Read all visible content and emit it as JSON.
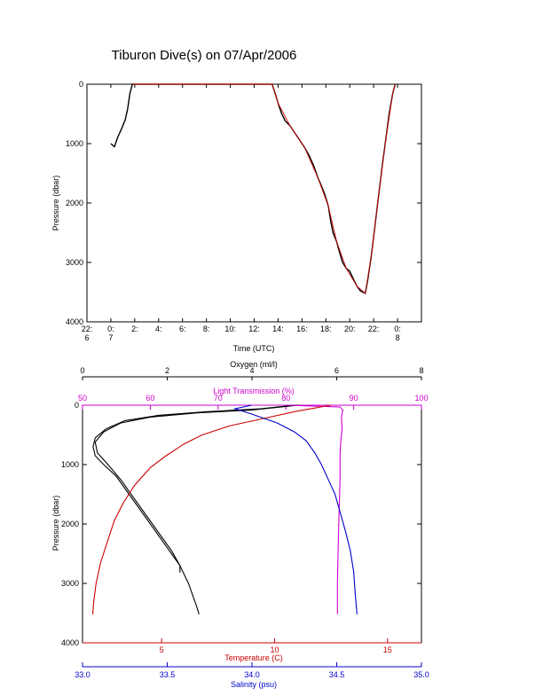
{
  "figure": {
    "title": "Tiburon Dive(s) on 07/Apr/2006"
  },
  "chart_data": [
    {
      "type": "line",
      "name": "dive-depth-vs-time",
      "xlabel": "Time (UTC)",
      "ylabel": "Pressure (dbar)",
      "xlim": [
        -2,
        26
      ],
      "ylim": [
        4000,
        0
      ],
      "y_ticks": [
        "0",
        "1000",
        "2000",
        "3000",
        "4000"
      ],
      "x_ticks": [
        {
          "x": -2,
          "label1": "22:",
          "label2": "6"
        },
        {
          "x": 0,
          "label1": "0:",
          "label2": "7"
        },
        {
          "x": 2,
          "label1": "2:",
          "label2": ""
        },
        {
          "x": 4,
          "label1": "4:",
          "label2": ""
        },
        {
          "x": 6,
          "label1": "6:",
          "label2": ""
        },
        {
          "x": 8,
          "label1": "8:",
          "label2": ""
        },
        {
          "x": 10,
          "label1": "10:",
          "label2": ""
        },
        {
          "x": 12,
          "label1": "12:",
          "label2": ""
        },
        {
          "x": 14,
          "label1": "14:",
          "label2": ""
        },
        {
          "x": 16,
          "label1": "16:",
          "label2": ""
        },
        {
          "x": 18,
          "label1": "18:",
          "label2": ""
        },
        {
          "x": 20,
          "label1": "20:",
          "label2": ""
        },
        {
          "x": 22,
          "label1": "22:",
          "label2": ""
        },
        {
          "x": 24,
          "label1": "0:",
          "label2": "8"
        }
      ],
      "series": [
        {
          "color": "#000000",
          "points": [
            [
              0.0,
              1000
            ],
            [
              0.3,
              1050
            ],
            [
              0.6,
              880
            ],
            [
              0.9,
              750
            ],
            [
              1.2,
              600
            ],
            [
              1.4,
              420
            ],
            [
              1.6,
              150
            ],
            [
              1.8,
              0
            ],
            [
              13.5,
              0
            ],
            [
              13.8,
              180
            ],
            [
              14.0,
              320
            ],
            [
              14.3,
              500
            ],
            [
              14.6,
              620
            ],
            [
              15.0,
              700
            ],
            [
              15.4,
              820
            ],
            [
              15.8,
              940
            ],
            [
              16.2,
              1060
            ],
            [
              16.6,
              1200
            ],
            [
              17.0,
              1380
            ],
            [
              17.3,
              1560
            ],
            [
              17.6,
              1700
            ],
            [
              17.9,
              1850
            ],
            [
              18.2,
              2050
            ],
            [
              18.4,
              2300
            ],
            [
              18.6,
              2500
            ],
            [
              18.9,
              2650
            ],
            [
              19.1,
              2800
            ],
            [
              19.4,
              3000
            ],
            [
              19.7,
              3100
            ],
            [
              20.0,
              3150
            ],
            [
              20.3,
              3280
            ],
            [
              20.6,
              3400
            ],
            [
              20.9,
              3480
            ],
            [
              21.3,
              3520
            ],
            [
              21.5,
              3300
            ],
            [
              21.8,
              2900
            ],
            [
              22.1,
              2400
            ],
            [
              22.4,
              1900
            ],
            [
              22.7,
              1400
            ],
            [
              23.0,
              950
            ],
            [
              23.3,
              500
            ],
            [
              23.6,
              150
            ],
            [
              23.8,
              0
            ]
          ]
        },
        {
          "color": "#cc0000",
          "points": [
            [
              1.8,
              0
            ],
            [
              13.5,
              0
            ],
            [
              14.0,
              320
            ],
            [
              15.0,
              700
            ],
            [
              16.2,
              1060
            ],
            [
              17.3,
              1560
            ],
            [
              18.2,
              2050
            ],
            [
              18.9,
              2650
            ],
            [
              19.7,
              3100
            ],
            [
              20.6,
              3400
            ],
            [
              21.3,
              3520
            ],
            [
              21.8,
              2900
            ],
            [
              22.4,
              1900
            ],
            [
              23.0,
              950
            ],
            [
              23.6,
              150
            ],
            [
              23.8,
              0
            ]
          ]
        }
      ]
    },
    {
      "type": "line",
      "name": "ctd-profiles",
      "ylabel": "Pressure (dbar)",
      "ylim": [
        4000,
        0
      ],
      "y_ticks": [
        "0",
        "1000",
        "2000",
        "3000",
        "4000"
      ],
      "axes": {
        "oxygen": {
          "label": "Oxygen (ml/l)",
          "range": [
            0,
            8
          ],
          "ticks": [
            "0",
            "2",
            "4",
            "6",
            "8"
          ],
          "color": "#000000"
        },
        "transmission": {
          "label": "Light Transmission (%)",
          "range": [
            50,
            100
          ],
          "ticks": [
            "50",
            "60",
            "70",
            "80",
            "90",
            "100"
          ],
          "color": "#cc00cc"
        },
        "temperature": {
          "label": "Temperature (C)",
          "range": [
            1.5,
            16.5
          ],
          "ticks": [
            "5",
            "10",
            "15"
          ],
          "tick_values": [
            5,
            10,
            15
          ],
          "color": "#cc0000"
        },
        "salinity": {
          "label": "Salinity (psu)",
          "range": [
            33.0,
            35.0
          ],
          "ticks": [
            "33.0",
            "33.5",
            "34.0",
            "34.5",
            "35.0"
          ],
          "color": "#0000cc"
        }
      },
      "series": [
        {
          "axis": "oxygen",
          "color": "#000000",
          "points": [
            [
              5.0,
              0
            ],
            [
              4.2,
              60
            ],
            [
              2.9,
              110
            ],
            [
              1.8,
              170
            ],
            [
              1.0,
              260
            ],
            [
              0.55,
              400
            ],
            [
              0.3,
              550
            ],
            [
              0.25,
              700
            ],
            [
              0.3,
              850
            ],
            [
              0.5,
              1000
            ],
            [
              0.8,
              1200
            ],
            [
              1.1,
              1500
            ],
            [
              1.4,
              1800
            ],
            [
              1.7,
              2100
            ],
            [
              2.0,
              2400
            ],
            [
              2.3,
              2700
            ],
            [
              2.5,
              3000
            ],
            [
              2.6,
              3200
            ],
            [
              2.7,
              3400
            ],
            [
              2.75,
              3520
            ]
          ]
        },
        {
          "axis": "oxygen",
          "color": "#000000",
          "points": [
            [
              5.1,
              0
            ],
            [
              4.0,
              80
            ],
            [
              2.7,
              130
            ],
            [
              1.6,
              200
            ],
            [
              0.9,
              300
            ],
            [
              0.5,
              450
            ],
            [
              0.3,
              620
            ],
            [
              0.35,
              800
            ],
            [
              0.6,
              1000
            ],
            [
              0.9,
              1250
            ],
            [
              1.2,
              1550
            ],
            [
              1.5,
              1850
            ],
            [
              1.8,
              2150
            ],
            [
              2.1,
              2450
            ],
            [
              2.3,
              2700
            ],
            [
              2.3,
              2820
            ]
          ]
        },
        {
          "axis": "transmission",
          "color": "#cc00cc",
          "points": [
            [
              80,
              0
            ],
            [
              88,
              30
            ],
            [
              88.4,
              80
            ],
            [
              88.2,
              200
            ],
            [
              88.3,
              400
            ],
            [
              88.1,
              600
            ],
            [
              88.0,
              800
            ],
            [
              88.0,
              1200
            ],
            [
              87.9,
              1600
            ],
            [
              87.8,
              2000
            ],
            [
              87.7,
              2500
            ],
            [
              87.6,
              3000
            ],
            [
              87.6,
              3520
            ]
          ]
        },
        {
          "axis": "temperature",
          "color": "#cc0000",
          "points": [
            [
              12.5,
              0
            ],
            [
              11.0,
              100
            ],
            [
              9.8,
              200
            ],
            [
              8.0,
              350
            ],
            [
              6.8,
              500
            ],
            [
              6.0,
              650
            ],
            [
              5.2,
              850
            ],
            [
              4.5,
              1050
            ],
            [
              3.8,
              1350
            ],
            [
              3.3,
              1650
            ],
            [
              2.9,
              1950
            ],
            [
              2.6,
              2300
            ],
            [
              2.3,
              2650
            ],
            [
              2.1,
              3000
            ],
            [
              2.0,
              3300
            ],
            [
              1.95,
              3520
            ]
          ]
        },
        {
          "axis": "salinity",
          "color": "#0000cc",
          "points": [
            [
              34.0,
              0
            ],
            [
              33.9,
              60
            ],
            [
              34.0,
              150
            ],
            [
              34.15,
              300
            ],
            [
              34.25,
              450
            ],
            [
              34.32,
              600
            ],
            [
              34.37,
              800
            ],
            [
              34.41,
              1000
            ],
            [
              34.45,
              1250
            ],
            [
              34.49,
              1500
            ],
            [
              34.52,
              1800
            ],
            [
              34.55,
              2100
            ],
            [
              34.58,
              2450
            ],
            [
              34.6,
              2800
            ],
            [
              34.61,
              3200
            ],
            [
              34.62,
              3520
            ]
          ]
        }
      ]
    }
  ]
}
